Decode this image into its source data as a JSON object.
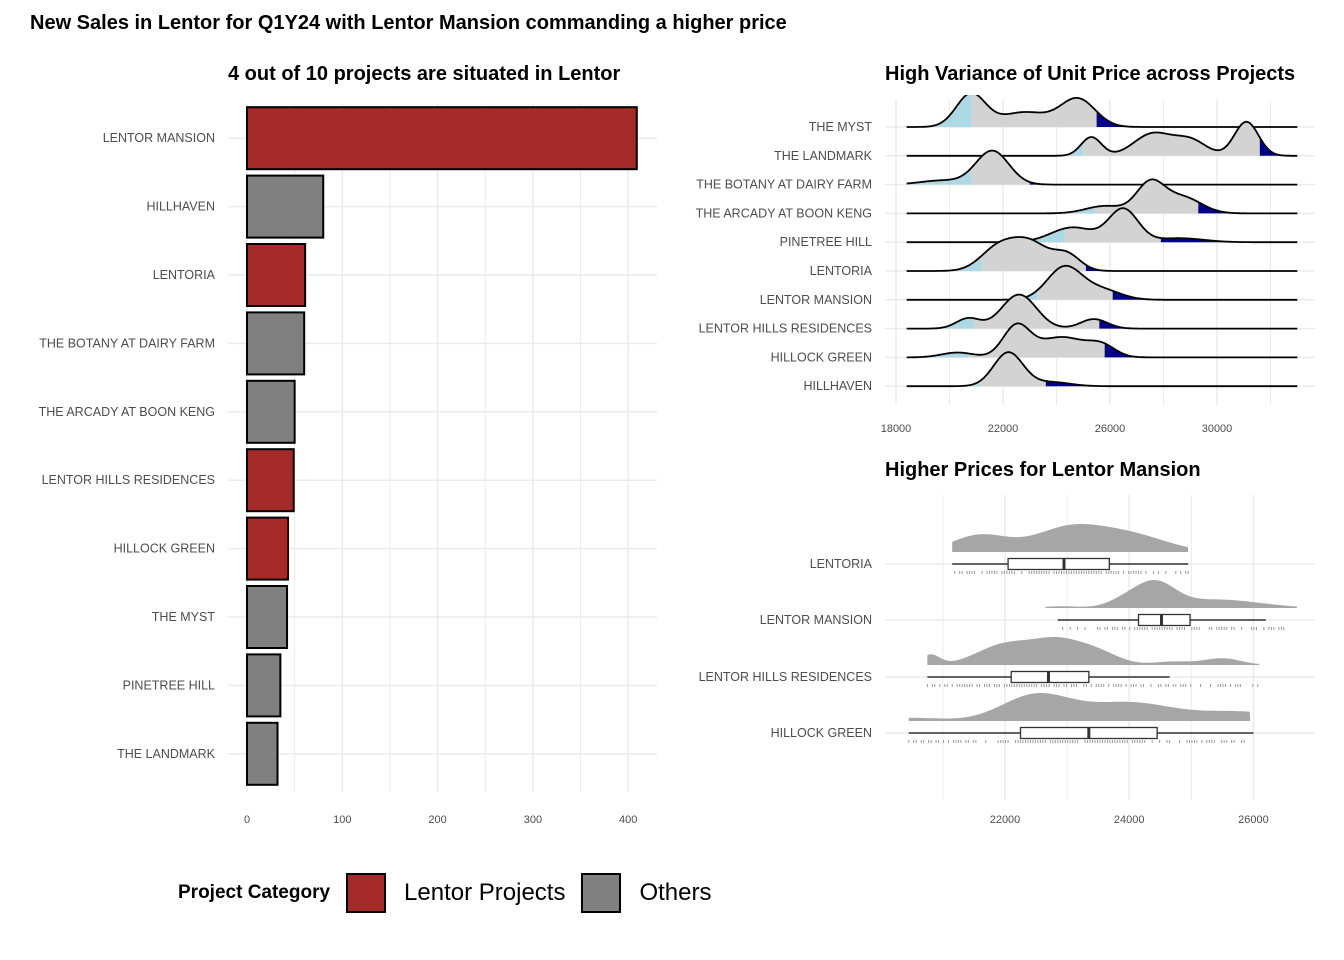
{
  "main_title": "New Sales in Lentor for Q1Y24 with Lentor Mansion commanding a higher price",
  "colors": {
    "lentor": "#A52A2A",
    "others": "#808080",
    "ridge_fill": "#D3D3D3",
    "ridge_low_tail": "#ADD8E6",
    "ridge_high_tail": "#00008B",
    "rain_fill": "#A6A6A6",
    "grid": "#EBEBEB",
    "axis_text": "#4D4D4D"
  },
  "legend": {
    "title": "Project Category",
    "items": [
      {
        "label": "Lentor Projects",
        "color_key": "lentor"
      },
      {
        "label": "Others",
        "color_key": "others"
      }
    ]
  },
  "chart_data": [
    {
      "id": "bar",
      "type": "bar",
      "orientation": "horizontal",
      "title": "4 out of 10 projects are situated in Lentor",
      "xlabel": "",
      "ylabel": "",
      "xlim": [
        0,
        420
      ],
      "xticks": [
        0,
        100,
        200,
        300,
        400
      ],
      "grid": true,
      "legend_position": "bottom",
      "categories": [
        "LENTOR MANSION",
        "HILLHAVEN",
        "LENTORIA",
        "THE BOTANY AT DAIRY FARM",
        "THE ARCADY AT BOON KENG",
        "LENTOR HILLS RESIDENCES",
        "HILLOCK GREEN",
        "THE MYST",
        "PINETREE HILL",
        "THE LANDMARK"
      ],
      "values": [
        409,
        80,
        61,
        60,
        50,
        49,
        43,
        42,
        35,
        32
      ],
      "category_group": [
        "Lentor Projects",
        "Others",
        "Lentor Projects",
        "Others",
        "Others",
        "Lentor Projects",
        "Lentor Projects",
        "Others",
        "Others",
        "Others"
      ]
    },
    {
      "id": "ridge",
      "type": "area",
      "subtype": "ridgeline-density",
      "title": "High Variance of Unit Price across Projects",
      "xlabel": "",
      "ylabel": "",
      "xlim": [
        17600,
        34000
      ],
      "xticks": [
        18000,
        22000,
        26000,
        30000
      ],
      "line_range": [
        18400,
        33000
      ],
      "grid": true,
      "tails": {
        "low_quantile": 0.025,
        "high_quantile": 0.975
      },
      "series": [
        {
          "name": "THE MYST",
          "low_cut": 20800,
          "high_cut": 25500,
          "components": [
            [
              20800,
              550,
              1.0
            ],
            [
              22800,
              900,
              0.45
            ],
            [
              24800,
              650,
              0.85
            ]
          ]
        },
        {
          "name": "THE LANDMARK",
          "low_cut": 25000,
          "high_cut": 31600,
          "components": [
            [
              25300,
              380,
              0.55
            ],
            [
              27600,
              700,
              0.65
            ],
            [
              29000,
              600,
              0.45
            ],
            [
              31100,
              450,
              1.0
            ]
          ]
        },
        {
          "name": "THE BOTANY AT DAIRY FARM",
          "low_cut": 20800,
          "high_cut": 23000,
          "components": [
            [
              19700,
              800,
              0.12
            ],
            [
              21600,
              620,
              1.0
            ]
          ]
        },
        {
          "name": "THE ARCADY AT BOON KENG",
          "low_cut": 25400,
          "high_cut": 29300,
          "components": [
            [
              25800,
              700,
              0.25
            ],
            [
              27500,
              520,
              1.0
            ],
            [
              28700,
              700,
              0.55
            ]
          ]
        },
        {
          "name": "PINETREE HILL",
          "low_cut": 24300,
          "high_cut": 27900,
          "components": [
            [
              24600,
              800,
              0.45
            ],
            [
              26500,
              550,
              1.0
            ],
            [
              28600,
              900,
              0.12
            ]
          ]
        },
        {
          "name": "LENTORIA",
          "low_cut": 21200,
          "high_cut": 25100,
          "components": [
            [
              21800,
              650,
              0.7
            ],
            [
              23000,
              700,
              0.9
            ],
            [
              24400,
              500,
              0.5
            ]
          ]
        },
        {
          "name": "LENTOR MANSION",
          "low_cut": 23300,
          "high_cut": 26100,
          "components": [
            [
              24300,
              650,
              1.0
            ],
            [
              25700,
              700,
              0.3
            ]
          ]
        },
        {
          "name": "LENTOR HILLS RESIDENCES",
          "low_cut": 20900,
          "high_cut": 25600,
          "components": [
            [
              20700,
              450,
              0.3
            ],
            [
              22600,
              650,
              1.0
            ],
            [
              25400,
              500,
              0.28
            ]
          ]
        },
        {
          "name": "HILLOCK GREEN",
          "low_cut": 20700,
          "high_cut": 25800,
          "components": [
            [
              20300,
              600,
              0.12
            ],
            [
              22500,
              500,
              0.75
            ],
            [
              24200,
              900,
              0.5
            ],
            [
              25700,
              500,
              0.25
            ]
          ]
        },
        {
          "name": "HILLHAVEN",
          "low_cut": 21100,
          "high_cut": 23600,
          "components": [
            [
              22200,
              550,
              1.0
            ],
            [
              23800,
              700,
              0.12
            ]
          ]
        }
      ]
    },
    {
      "id": "rain",
      "type": "area",
      "subtype": "raincloud",
      "title": "Higher Prices for Lentor Mansion",
      "xlabel": "",
      "ylabel": "",
      "xlim": [
        20350,
        26950
      ],
      "xticks": [
        22000,
        24000,
        26000
      ],
      "grid": true,
      "series": [
        {
          "name": "LENTORIA",
          "box": {
            "min": 21150,
            "q1": 22050,
            "median": 22950,
            "q3": 23680,
            "max": 24950
          },
          "density_range": [
            21150,
            24950
          ],
          "components": [
            [
              21600,
              450,
              0.75
            ],
            [
              23000,
              550,
              1.0
            ],
            [
              24000,
              600,
              0.75
            ]
          ]
        },
        {
          "name": "LENTOR MANSION",
          "box": {
            "min": 22850,
            "q1": 24150,
            "median": 24520,
            "q3": 24980,
            "max": 26200
          },
          "density_range": [
            22650,
            26700
          ],
          "components": [
            [
              22900,
              300,
              0.08
            ],
            [
              24000,
              300,
              0.45
            ],
            [
              24450,
              300,
              1.0
            ],
            [
              25400,
              700,
              0.4
            ]
          ]
        },
        {
          "name": "LENTOR HILLS RESIDENCES",
          "box": {
            "min": 20750,
            "q1": 22100,
            "median": 22700,
            "q3": 23350,
            "max": 24650
          },
          "density_range": [
            20750,
            26100
          ],
          "components": [
            [
              20800,
              150,
              0.45
            ],
            [
              22000,
              450,
              0.9
            ],
            [
              22850,
              400,
              1.0
            ],
            [
              23500,
              350,
              0.5
            ],
            [
              24700,
              300,
              0.15
            ],
            [
              25500,
              300,
              0.3
            ]
          ]
        },
        {
          "name": "HILLOCK GREEN",
          "box": {
            "min": 20450,
            "q1": 22250,
            "median": 23350,
            "q3": 24450,
            "max": 26000
          },
          "density_range": [
            20450,
            25950
          ],
          "components": [
            [
              20500,
              500,
              0.12
            ],
            [
              22500,
              550,
              1.0
            ],
            [
              24000,
              700,
              0.7
            ],
            [
              25800,
              700,
              0.35
            ]
          ]
        }
      ]
    }
  ]
}
